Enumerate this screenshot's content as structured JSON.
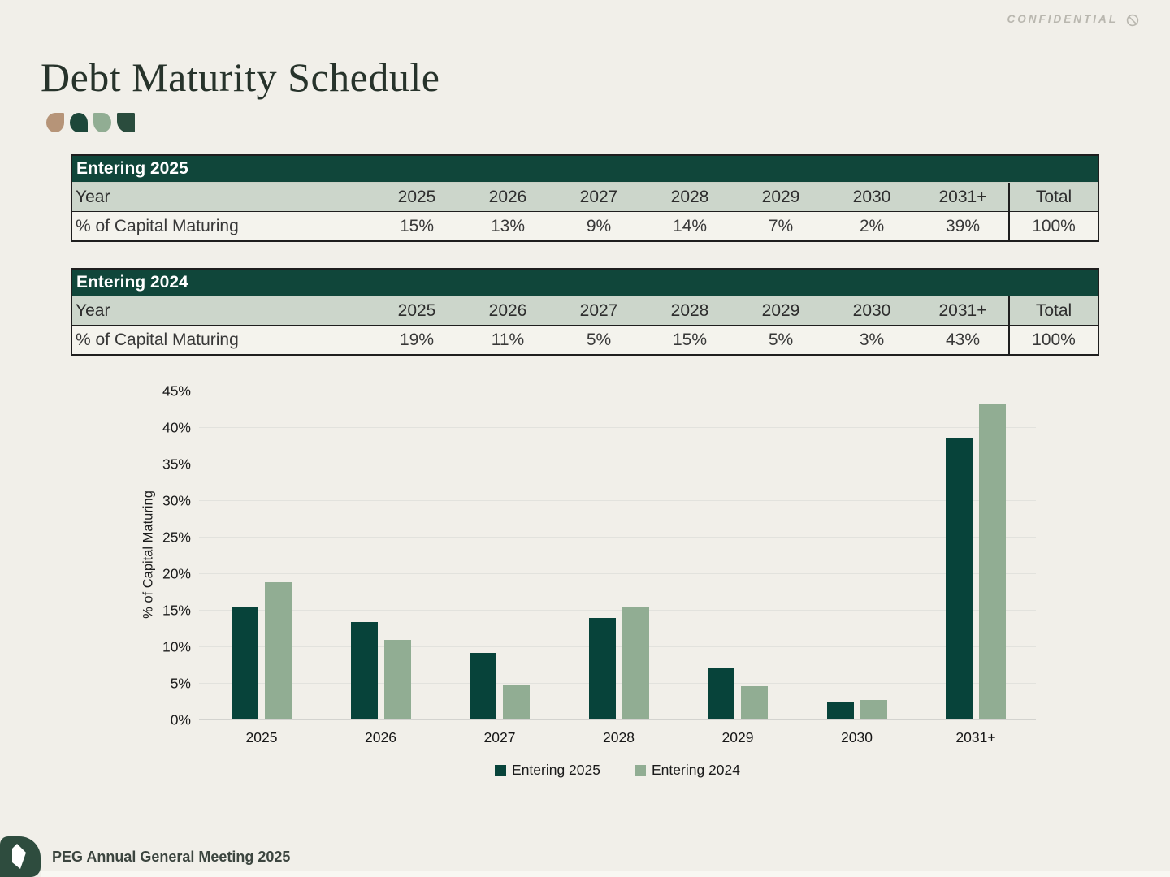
{
  "confidential": {
    "label": "CONFIDENTIAL",
    "icon": "no-entry-icon",
    "color": "#b9b7af"
  },
  "title": "Debt Maturity Schedule",
  "decor_leaf_colors": [
    "#b69478",
    "#1d473a",
    "#91ad93",
    "#2a4c3d"
  ],
  "tables": [
    {
      "header": "Entering 2025",
      "row_label": "Year",
      "columns": [
        "2025",
        "2026",
        "2027",
        "2028",
        "2029",
        "2030",
        "2031+",
        "Total"
      ],
      "data_label": "% of Capital Maturing",
      "values": [
        "15%",
        "13%",
        "9%",
        "14%",
        "7%",
        "2%",
        "39%",
        "100%"
      ]
    },
    {
      "header": "Entering 2024",
      "row_label": "Year",
      "columns": [
        "2025",
        "2026",
        "2027",
        "2028",
        "2029",
        "2030",
        "2031+",
        "Total"
      ],
      "data_label": "% of Capital Maturing",
      "values": [
        "19%",
        "11%",
        "5%",
        "15%",
        "5%",
        "3%",
        "43%",
        "100%"
      ]
    }
  ],
  "chart_data": {
    "type": "bar",
    "categories": [
      "2025",
      "2026",
      "2027",
      "2028",
      "2029",
      "2030",
      "2031+"
    ],
    "series": [
      {
        "name": "Entering 2025",
        "color": "#07433a",
        "values": [
          15.4,
          13.3,
          9.1,
          13.9,
          7.0,
          2.4,
          38.6
        ]
      },
      {
        "name": "Entering 2024",
        "color": "#91ad93",
        "values": [
          18.8,
          10.9,
          4.8,
          15.3,
          4.6,
          2.7,
          43.1
        ]
      }
    ],
    "title": "",
    "xlabel": "",
    "ylabel": "% of Capital Maturing",
    "ylim": [
      0,
      45
    ],
    "ytick_step": 5,
    "ytick_labels": [
      "0%",
      "5%",
      "10%",
      "15%",
      "20%",
      "25%",
      "30%",
      "35%",
      "40%",
      "45%"
    ],
    "grid": true,
    "legend_position": "bottom"
  },
  "footer": {
    "label": "PEG Annual General Meeting 2025",
    "logo_icon": "leaf-gem-icon"
  },
  "colors": {
    "background": "#f1efe9",
    "table_header_bg": "#10463a",
    "table_year_row_bg": "#ccd6cb",
    "series_dark": "#07433a",
    "series_sage": "#91ad93",
    "footer_logo_bg": "#2e4c3e"
  }
}
